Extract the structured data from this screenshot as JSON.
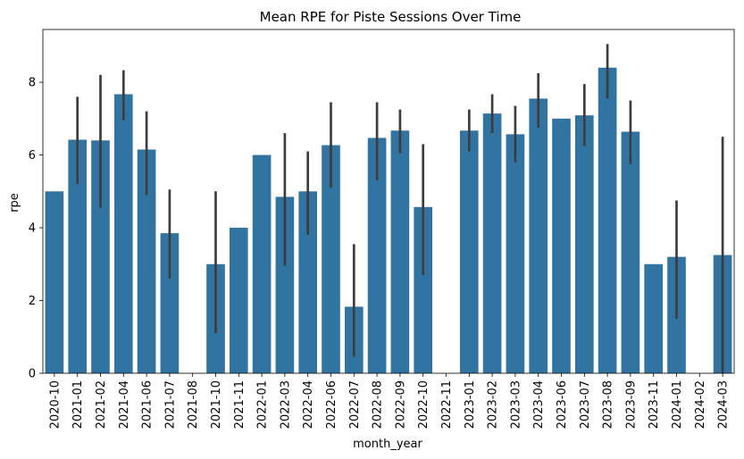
{
  "chart_data": {
    "type": "bar",
    "title": "Mean RPE for Piste Sessions Over Time",
    "xlabel": "month_year",
    "ylabel": "rpe",
    "ylim": [
      0,
      9.45
    ],
    "yticks": [
      0,
      2,
      4,
      6,
      8
    ],
    "bar_color": "#3274a1",
    "error_bar_color": "#3d3d3d",
    "grid": false,
    "categories": [
      "2020-10",
      "2021-01",
      "2021-02",
      "2021-04",
      "2021-06",
      "2021-07",
      "2021-08",
      "2021-10",
      "2021-11",
      "2022-01",
      "2022-03",
      "2022-04",
      "2022-06",
      "2022-07",
      "2022-08",
      "2022-09",
      "2022-10",
      "2022-11",
      "2023-01",
      "2023-02",
      "2023-03",
      "2023-04",
      "2023-06",
      "2023-07",
      "2023-08",
      "2023-09",
      "2023-11",
      "2024-01",
      "2024-02",
      "2024-03"
    ],
    "values": [
      5.0,
      6.42,
      6.4,
      7.67,
      6.15,
      3.85,
      null,
      3.0,
      4.0,
      6.0,
      4.85,
      5.0,
      6.27,
      1.83,
      6.47,
      6.67,
      4.57,
      null,
      6.67,
      7.14,
      6.57,
      7.55,
      7.0,
      7.09,
      8.4,
      6.64,
      3.0,
      3.2,
      null,
      3.25
    ],
    "ci_low": [
      null,
      5.2,
      4.55,
      6.95,
      4.9,
      2.6,
      null,
      1.1,
      null,
      null,
      2.95,
      3.8,
      5.1,
      0.45,
      5.3,
      6.05,
      2.7,
      null,
      6.1,
      6.6,
      5.8,
      6.75,
      null,
      6.25,
      7.55,
      5.75,
      null,
      1.5,
      null,
      0.0
    ],
    "ci_high": [
      null,
      7.6,
      8.2,
      8.33,
      7.2,
      5.05,
      null,
      5.0,
      null,
      null,
      6.6,
      6.1,
      7.45,
      3.55,
      7.45,
      7.25,
      6.3,
      null,
      7.25,
      7.67,
      7.35,
      8.25,
      null,
      7.95,
      9.05,
      7.5,
      null,
      4.75,
      null,
      6.5
    ]
  }
}
